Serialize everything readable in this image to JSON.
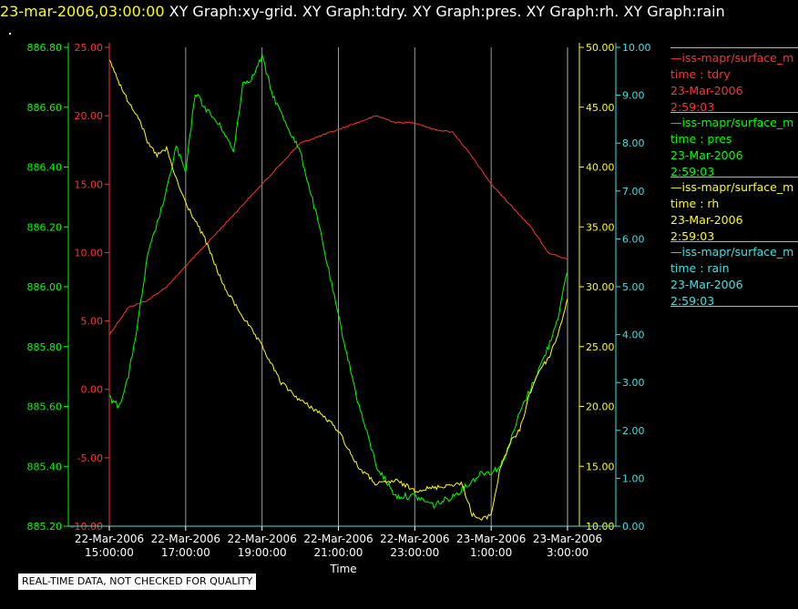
{
  "header": {
    "timestamp": "23-mar-2006,03:00:00",
    "graphs": [
      "XY Graph:xy-grid.",
      "XY Graph:tdry.",
      "XY Graph:pres.",
      "XY Graph:rh.",
      "XY Graph:rain"
    ]
  },
  "notice": "REAL-TIME DATA, NOT CHECKED FOR QUALITY",
  "legend": [
    {
      "name": "—iss-mapr/surface_m",
      "var": "time : tdry",
      "date": "23-Mar-2006",
      "time": "2:59:03",
      "color": "#ff3030"
    },
    {
      "name": "—iss-mapr/surface_m",
      "var": "time : pres",
      "date": "23-Mar-2006",
      "time": "2:59:03",
      "color": "#00ff00"
    },
    {
      "name": "—iss-mapr/surface_m",
      "var": "time : rh",
      "date": "23-Mar-2006",
      "time": "2:59:03",
      "color": "#ffff00"
    },
    {
      "name": "—iss-mapr/surface_m",
      "var": "time : rain",
      "date": "23-Mar-2006",
      "time": "2:59:03",
      "color": "#40e0e0"
    }
  ],
  "chart_data": {
    "type": "line",
    "xlabel": "Time",
    "x_ticks": [
      "22-Mar-2006\n15:00:00",
      "22-Mar-2006\n17:00:00",
      "22-Mar-2006\n19:00:00",
      "22-Mar-2006\n21:00:00",
      "22-Mar-2006\n23:00:00",
      "23-Mar-2006\n1:00:00",
      "23-Mar-2006\n3:00:00"
    ],
    "x_hours": [
      15,
      27
    ],
    "grid": "vertical",
    "axes": [
      {
        "id": "pres",
        "color": "#00ff00",
        "range": [
          885.2,
          886.8
        ],
        "ticks": [
          "885.20",
          "885.40",
          "885.60",
          "885.80",
          "886.00",
          "886.20",
          "886.40",
          "886.60",
          "886.80"
        ]
      },
      {
        "id": "tdry",
        "color": "#ff3030",
        "range": [
          -10,
          25
        ],
        "ticks": [
          "-10.00",
          "-5.00",
          "0.00",
          "5.00",
          "10.00",
          "15.00",
          "20.00",
          "25.00"
        ]
      },
      {
        "id": "rh",
        "color": "#ffff00",
        "range": [
          10,
          50
        ],
        "ticks": [
          "10.00",
          "15.00",
          "20.00",
          "25.00",
          "30.00",
          "35.00",
          "40.00",
          "45.00",
          "50.00"
        ]
      },
      {
        "id": "rain",
        "color": "#40e0e0",
        "range": [
          0,
          10
        ],
        "ticks": [
          "0.00",
          "1.00",
          "2.00",
          "3.00",
          "4.00",
          "5.00",
          "6.00",
          "7.00",
          "8.00",
          "9.00",
          "10.00"
        ]
      }
    ],
    "series": [
      {
        "name": "tdry",
        "axis": "tdry",
        "color": "#ff3030",
        "x": [
          15.0,
          15.5,
          16.0,
          16.5,
          17.0,
          17.5,
          18.0,
          18.5,
          19.0,
          19.5,
          20.0,
          20.5,
          21.0,
          21.5,
          22.0,
          22.5,
          23.0,
          23.5,
          24.0,
          24.5,
          25.0,
          25.5,
          26.0,
          26.5,
          27.0
        ],
        "y": [
          4.0,
          6.0,
          6.5,
          7.5,
          9.0,
          10.5,
          12.0,
          13.5,
          15.0,
          16.5,
          18.0,
          18.5,
          19.0,
          19.5,
          20.0,
          19.5,
          19.5,
          19.0,
          18.8,
          17.0,
          15.0,
          13.5,
          12.0,
          10.0,
          9.5
        ]
      },
      {
        "name": "pres",
        "axis": "pres",
        "color": "#00ff00",
        "x": [
          15.0,
          15.25,
          15.5,
          15.75,
          16.0,
          16.5,
          16.75,
          17.0,
          17.25,
          17.5,
          18.0,
          18.25,
          18.5,
          18.75,
          19.0,
          19.25,
          19.5,
          20.0,
          20.5,
          21.0,
          21.5,
          22.0,
          22.25,
          22.5,
          23.0,
          23.5,
          24.0,
          24.5,
          24.75,
          25.0,
          25.25,
          25.5,
          25.75,
          26.0,
          26.5,
          26.75,
          27.0
        ],
        "y": [
          885.63,
          885.6,
          885.7,
          885.88,
          886.1,
          886.32,
          886.47,
          886.38,
          886.65,
          886.6,
          886.52,
          886.45,
          886.68,
          886.7,
          886.77,
          886.65,
          886.58,
          886.45,
          886.2,
          885.9,
          885.62,
          885.4,
          885.35,
          885.3,
          885.3,
          885.27,
          885.3,
          885.35,
          885.38,
          885.38,
          885.4,
          885.48,
          885.58,
          885.65,
          885.8,
          885.9,
          886.05
        ]
      },
      {
        "name": "rh",
        "axis": "rh",
        "color": "#ffff00",
        "x": [
          15.0,
          15.2,
          15.4,
          15.6,
          15.8,
          16.0,
          16.25,
          16.5,
          16.75,
          17.0,
          17.25,
          17.5,
          17.75,
          18.0,
          18.5,
          19.0,
          19.5,
          20.0,
          20.5,
          21.0,
          21.5,
          22.0,
          22.5,
          23.0,
          23.5,
          24.0,
          24.25,
          24.5,
          24.75,
          25.0,
          25.25,
          25.5,
          25.75,
          26.0,
          26.25,
          26.5,
          26.75,
          27.0
        ],
        "y": [
          49.0,
          47.5,
          46.0,
          45.0,
          44.0,
          42.0,
          41.0,
          41.5,
          39.0,
          37.0,
          35.5,
          34.0,
          32.0,
          30.0,
          27.5,
          25.0,
          22.0,
          20.5,
          19.5,
          18.0,
          15.0,
          13.5,
          13.8,
          13.0,
          13.2,
          13.5,
          13.5,
          11.0,
          10.5,
          11.0,
          15.0,
          17.0,
          18.0,
          21.0,
          23.0,
          24.0,
          26.0,
          29.0
        ]
      },
      {
        "name": "rain",
        "axis": "rain",
        "color": "#40e0e0",
        "x": [
          15.0,
          27.0
        ],
        "y": [
          0.0,
          0.0
        ]
      }
    ]
  }
}
